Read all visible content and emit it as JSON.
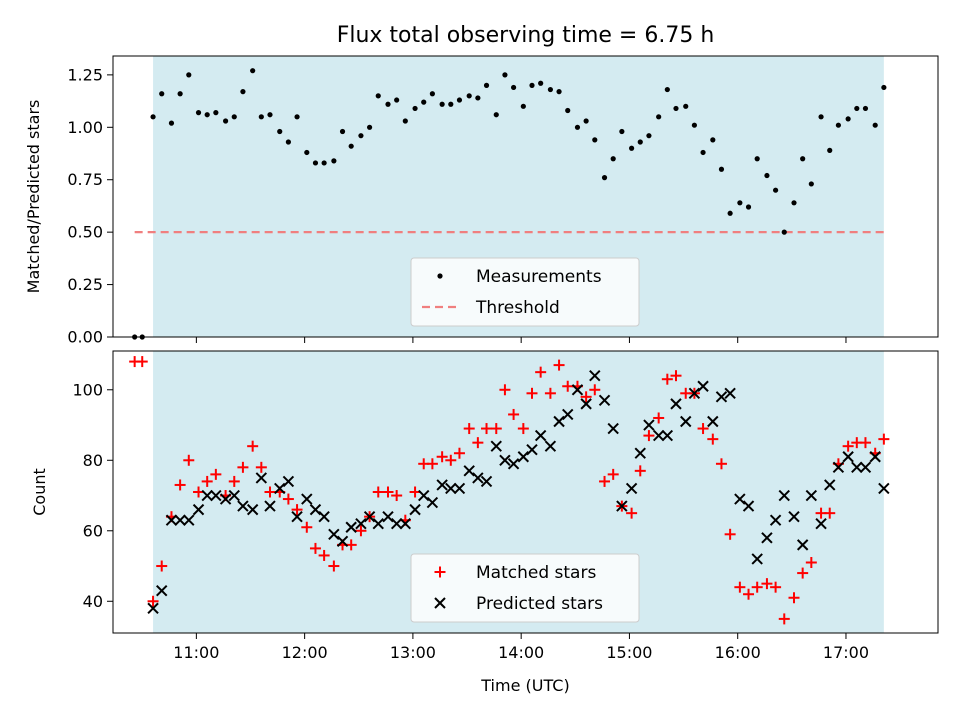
{
  "chart_data": [
    {
      "type": "scatter",
      "title": "Flux total observing time = 6.75 h",
      "xlabel": "",
      "ylabel": "Matched/Predicted stars",
      "xlim": [
        10.23,
        17.85
      ],
      "ylim": [
        0.0,
        1.34
      ],
      "yticks": [
        0.0,
        0.25,
        0.5,
        0.75,
        1.0,
        1.25
      ],
      "ytick_labels": [
        "0.00",
        "0.25",
        "0.50",
        "0.75",
        "1.00",
        "1.25"
      ],
      "shaded_x_range": [
        10.6,
        17.35
      ],
      "shade_color": "#d4ebf1",
      "threshold": {
        "name": "Threshold",
        "value": 0.5,
        "x_range": [
          10.43,
          17.35
        ],
        "color": "#f07f7f"
      },
      "legend_position": "lower center",
      "series": [
        {
          "name": "Measurements",
          "marker": "dot",
          "color": "#000000",
          "x": [
            10.43,
            10.5,
            10.6,
            10.68,
            10.77,
            10.85,
            10.93,
            11.02,
            11.1,
            11.18,
            11.27,
            11.35,
            11.43,
            11.52,
            11.6,
            11.68,
            11.77,
            11.85,
            11.93,
            12.02,
            12.1,
            12.18,
            12.27,
            12.35,
            12.43,
            12.52,
            12.6,
            12.68,
            12.77,
            12.85,
            12.93,
            13.02,
            13.1,
            13.18,
            13.27,
            13.35,
            13.43,
            13.52,
            13.6,
            13.68,
            13.77,
            13.85,
            13.93,
            14.02,
            14.1,
            14.18,
            14.27,
            14.35,
            14.43,
            14.52,
            14.6,
            14.68,
            14.77,
            14.85,
            14.93,
            15.02,
            15.1,
            15.18,
            15.27,
            15.35,
            15.43,
            15.52,
            15.6,
            15.68,
            15.77,
            15.85,
            15.93,
            16.02,
            16.1,
            16.18,
            16.27,
            16.35,
            16.43,
            16.52,
            16.6,
            16.68,
            16.77,
            16.85,
            16.93,
            17.02,
            17.1,
            17.18,
            17.27,
            17.35
          ],
          "y": [
            0.0,
            0.0,
            1.05,
            1.16,
            1.02,
            1.16,
            1.25,
            1.07,
            1.06,
            1.07,
            1.03,
            1.05,
            1.17,
            1.27,
            1.05,
            1.06,
            0.98,
            0.93,
            1.05,
            0.88,
            0.83,
            0.83,
            0.84,
            0.98,
            0.91,
            0.96,
            1.0,
            1.15,
            1.11,
            1.13,
            1.03,
            1.09,
            1.12,
            1.16,
            1.11,
            1.11,
            1.13,
            1.15,
            1.14,
            1.2,
            1.06,
            1.25,
            1.19,
            1.1,
            1.2,
            1.21,
            1.18,
            1.17,
            1.08,
            1.0,
            1.03,
            0.94,
            0.76,
            0.85,
            0.98,
            0.9,
            0.93,
            0.96,
            1.05,
            1.18,
            1.09,
            1.1,
            1.01,
            0.88,
            0.94,
            0.8,
            0.59,
            0.64,
            0.62,
            0.85,
            0.77,
            0.7,
            0.5,
            0.64,
            0.85,
            0.73,
            1.05,
            0.89,
            1.01,
            1.04,
            1.09,
            1.09,
            1.01,
            1.19
          ]
        }
      ]
    },
    {
      "type": "scatter",
      "title": "",
      "xlabel": "Time (UTC)",
      "ylabel": "Count",
      "xlim": [
        10.23,
        17.85
      ],
      "ylim": [
        31,
        111
      ],
      "yticks": [
        40,
        60,
        80,
        100
      ],
      "ytick_labels": [
        "40",
        "60",
        "80",
        "100"
      ],
      "xticks": [
        11,
        12,
        13,
        14,
        15,
        16,
        17
      ],
      "xtick_labels": [
        "11:00",
        "12:00",
        "13:00",
        "14:00",
        "15:00",
        "16:00",
        "17:00"
      ],
      "shaded_x_range": [
        10.6,
        17.35
      ],
      "legend_position": "lower center",
      "series": [
        {
          "name": "Matched stars",
          "marker": "plus",
          "color": "#ff0000",
          "x": [
            10.43,
            10.5,
            10.6,
            10.68,
            10.77,
            10.85,
            10.93,
            11.02,
            11.1,
            11.18,
            11.27,
            11.35,
            11.43,
            11.52,
            11.6,
            11.68,
            11.77,
            11.85,
            11.93,
            12.02,
            12.1,
            12.18,
            12.27,
            12.35,
            12.43,
            12.52,
            12.6,
            12.68,
            12.77,
            12.85,
            12.93,
            13.02,
            13.1,
            13.18,
            13.27,
            13.35,
            13.43,
            13.52,
            13.6,
            13.68,
            13.77,
            13.85,
            13.93,
            14.02,
            14.1,
            14.18,
            14.27,
            14.35,
            14.43,
            14.52,
            14.6,
            14.68,
            14.77,
            14.85,
            14.93,
            15.02,
            15.1,
            15.18,
            15.27,
            15.35,
            15.43,
            15.52,
            15.6,
            15.68,
            15.77,
            15.85,
            15.93,
            16.02,
            16.1,
            16.18,
            16.27,
            16.35,
            16.43,
            16.52,
            16.6,
            16.68,
            16.77,
            16.85,
            16.93,
            17.02,
            17.1,
            17.18,
            17.27,
            17.35
          ],
          "y": [
            108,
            108,
            40,
            50,
            64,
            73,
            80,
            71,
            74,
            76,
            70,
            74,
            78,
            84,
            78,
            71,
            71,
            69,
            66,
            61,
            55,
            53,
            50,
            56,
            56,
            60,
            64,
            71,
            71,
            70,
            63,
            71,
            79,
            79,
            81,
            80,
            82,
            89,
            85,
            89,
            89,
            100,
            93,
            89,
            99,
            105,
            99,
            107,
            101,
            101,
            98,
            100,
            74,
            76,
            67,
            65,
            77,
            87,
            92,
            103,
            104,
            99,
            99,
            89,
            86,
            79,
            59,
            44,
            42,
            44,
            45,
            44,
            35,
            41,
            48,
            51,
            65,
            65,
            79,
            84,
            85,
            85,
            82,
            86
          ]
        },
        {
          "name": "Predicted stars",
          "marker": "x",
          "color": "#000000",
          "x": [
            10.6,
            10.68,
            10.77,
            10.85,
            10.93,
            11.02,
            11.1,
            11.18,
            11.27,
            11.35,
            11.43,
            11.52,
            11.6,
            11.68,
            11.77,
            11.85,
            11.93,
            12.02,
            12.1,
            12.18,
            12.27,
            12.35,
            12.43,
            12.52,
            12.6,
            12.68,
            12.77,
            12.85,
            12.93,
            13.02,
            13.1,
            13.18,
            13.27,
            13.35,
            13.43,
            13.52,
            13.6,
            13.68,
            13.77,
            13.85,
            13.93,
            14.02,
            14.1,
            14.18,
            14.27,
            14.35,
            14.43,
            14.52,
            14.6,
            14.68,
            14.77,
            14.85,
            14.93,
            15.02,
            15.1,
            15.18,
            15.27,
            15.35,
            15.43,
            15.52,
            15.6,
            15.68,
            15.77,
            15.85,
            15.93,
            16.02,
            16.1,
            16.18,
            16.27,
            16.35,
            16.43,
            16.52,
            16.6,
            16.68,
            16.77,
            16.85,
            16.93,
            17.02,
            17.1,
            17.18,
            17.27,
            17.35
          ],
          "y": [
            38,
            43,
            63,
            63,
            63,
            66,
            70,
            70,
            69,
            70,
            67,
            66,
            75,
            67,
            72,
            74,
            64,
            69,
            66,
            64,
            59,
            57,
            61,
            62,
            64,
            62,
            64,
            62,
            62,
            66,
            70,
            68,
            73,
            72,
            72,
            77,
            75,
            74,
            84,
            80,
            79,
            81,
            83,
            87,
            84,
            91,
            93,
            100,
            96,
            104,
            97,
            89,
            67,
            72,
            82,
            90,
            87,
            87,
            96,
            91,
            99,
            101,
            91,
            98,
            99,
            69,
            67,
            52,
            58,
            63,
            70,
            64,
            56,
            70,
            62,
            73,
            78,
            81,
            78,
            78,
            81,
            72
          ]
        }
      ]
    }
  ]
}
